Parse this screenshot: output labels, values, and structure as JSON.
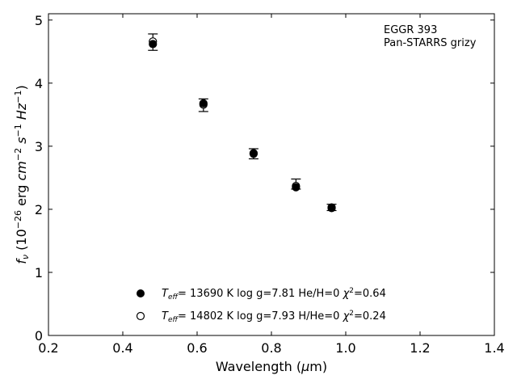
{
  "chart_data": {
    "type": "scatter",
    "title": "",
    "annotations": [
      "EGGR 393",
      "Pan-STARRS grizy"
    ],
    "xlabel": {
      "prefix": "Wavelength (",
      "mu": "μ",
      "suffix": "m)"
    },
    "ylabel": {
      "f": "f",
      "nu": "ν",
      "open": " (10",
      "e26": "−26",
      "erg": " erg ",
      "cm": "cm",
      "em2": "−2",
      "s": " s",
      "em1": "−1",
      "hz": " Hz",
      "em1b": "−1",
      "close": ")"
    },
    "xlim": [
      0.2,
      1.4
    ],
    "ylim": [
      0,
      5.1
    ],
    "xticks": [
      0.2,
      0.4,
      0.6,
      0.8,
      1.0,
      1.2,
      1.4
    ],
    "xtick_labels": [
      "0.2",
      "0.4",
      "0.6",
      "0.8",
      "1.0",
      "1.2",
      "1.4"
    ],
    "yticks": [
      0,
      1,
      2,
      3,
      4,
      5
    ],
    "ytick_labels": [
      "0",
      "1",
      "2",
      "3",
      "4",
      "5"
    ],
    "grid": false,
    "legend_position": "bottom-center",
    "observed": {
      "x": [
        0.481,
        0.617,
        0.752,
        0.866,
        0.962
      ],
      "y": [
        4.65,
        3.65,
        2.88,
        2.4,
        2.03
      ],
      "yerr": [
        0.13,
        0.1,
        0.08,
        0.08,
        0.05
      ]
    },
    "series": [
      {
        "marker": "filled",
        "x": [
          0.481,
          0.617,
          0.752,
          0.866,
          0.962
        ],
        "y": [
          4.62,
          3.68,
          2.89,
          2.35,
          2.02
        ],
        "legend": {
          "T": "T",
          "eff": "eff",
          "rest": "= 13690 K  log g=7.81  He/H=0  ",
          "chi": "χ",
          "sq": "2",
          "val": "=0.64"
        }
      },
      {
        "marker": "open",
        "x": [
          0.481,
          0.617,
          0.752,
          0.866,
          0.962
        ],
        "y": [
          4.66,
          3.66,
          2.88,
          2.37,
          2.03
        ],
        "legend": {
          "T": "T",
          "eff": "eff",
          "rest": "= 14802 K  log g=7.93  H/He=0  ",
          "chi": "χ",
          "sq": "2",
          "val": "=0.24"
        }
      }
    ]
  }
}
